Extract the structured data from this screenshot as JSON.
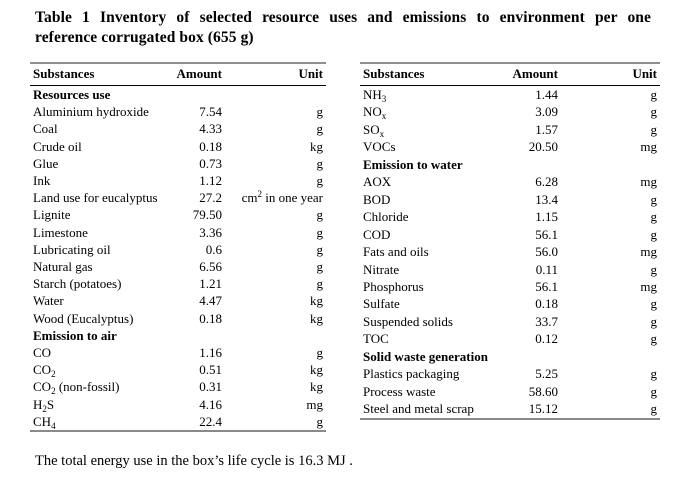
{
  "title": {
    "line1": "Table 1 Inventory of selected resource uses and emissions to environment per one",
    "line2": "reference corrugated box (655 g)"
  },
  "tables": {
    "left": {
      "headers": [
        "Substances",
        "Amount",
        "Unit"
      ],
      "rows": [
        {
          "section": "Resources use"
        },
        {
          "substance": "Aluminium hydroxide",
          "amount": "7.54",
          "unit": "g"
        },
        {
          "substance": "Coal",
          "amount": "4.33",
          "unit": "g"
        },
        {
          "substance": "Crude oil",
          "amount": "0.18",
          "unit": "kg"
        },
        {
          "substance": "Glue",
          "amount": "0.73",
          "unit": "g"
        },
        {
          "substance": "Ink",
          "amount": "1.12",
          "unit": "g"
        },
        {
          "substance": "Land use for eucalyptus",
          "amount": "27.2",
          "unit": "cm^2^ in one year"
        },
        {
          "substance": "Lignite",
          "amount": "79.50",
          "unit": "g"
        },
        {
          "substance": "Limestone",
          "amount": "3.36",
          "unit": "g"
        },
        {
          "substance": "Lubricating oil",
          "amount": "0.6",
          "unit": "g"
        },
        {
          "substance": "Natural gas",
          "amount": "6.56",
          "unit": "g"
        },
        {
          "substance": "Starch (potatoes)",
          "amount": "1.21",
          "unit": "g"
        },
        {
          "substance": "Water",
          "amount": "4.47",
          "unit": "kg"
        },
        {
          "substance": "Wood (Eucalyptus)",
          "amount": "0.18",
          "unit": "kg"
        },
        {
          "section": "Emission to air"
        },
        {
          "substance": "CO",
          "amount": "1.16",
          "unit": "g"
        },
        {
          "substance": "CO~2~",
          "amount": "0.51",
          "unit": "kg"
        },
        {
          "substance": "CO~2~ (non-fossil)",
          "amount": "0.31",
          "unit": "kg"
        },
        {
          "substance": "H~2~S",
          "amount": "4.16",
          "unit": "mg"
        },
        {
          "substance": "CH~4~",
          "amount": "22.4",
          "unit": "g"
        }
      ]
    },
    "right": {
      "headers": [
        "Substances",
        "Amount",
        "Unit"
      ],
      "rows": [
        {
          "substance": "NH~3~",
          "amount": "1.44",
          "unit": "g"
        },
        {
          "substance": "NO~x~",
          "amount": "3.09",
          "unit": "g"
        },
        {
          "substance": "SO~x~",
          "amount": "1.57",
          "unit": "g"
        },
        {
          "substance": "VOCs",
          "amount": "20.50",
          "unit": "mg"
        },
        {
          "section": "Emission to water"
        },
        {
          "substance": "AOX",
          "amount": "6.28",
          "unit": "mg"
        },
        {
          "substance": "BOD",
          "amount": "13.4",
          "unit": "g"
        },
        {
          "substance": "Chloride",
          "amount": "1.15",
          "unit": "g"
        },
        {
          "substance": "COD",
          "amount": "56.1",
          "unit": "g"
        },
        {
          "substance": "Fats and oils",
          "amount": "56.0",
          "unit": "mg"
        },
        {
          "substance": "Nitrate",
          "amount": "0.11",
          "unit": "g"
        },
        {
          "substance": "Phosphorus",
          "amount": "56.1",
          "unit": "mg"
        },
        {
          "substance": "Sulfate",
          "amount": "0.18",
          "unit": "g"
        },
        {
          "substance": "Suspended solids",
          "amount": "33.7",
          "unit": "g"
        },
        {
          "substance": "TOC",
          "amount": "0.12",
          "unit": "g"
        },
        {
          "section": "Solid waste generation"
        },
        {
          "substance": "Plastics packaging",
          "amount": "5.25",
          "unit": "g"
        },
        {
          "substance": "Process waste",
          "amount": "58.60",
          "unit": "g"
        },
        {
          "substance": "Steel and metal scrap",
          "amount": "15.12",
          "unit": "g"
        }
      ]
    }
  },
  "footer": {
    "note": "The total energy use in the box’s life cycle is 16.3 MJ ."
  },
  "colors": {
    "rule_gray": "#8f8f8f",
    "header_rule": "#000000",
    "text": "#000000",
    "background": "#ffffff"
  }
}
